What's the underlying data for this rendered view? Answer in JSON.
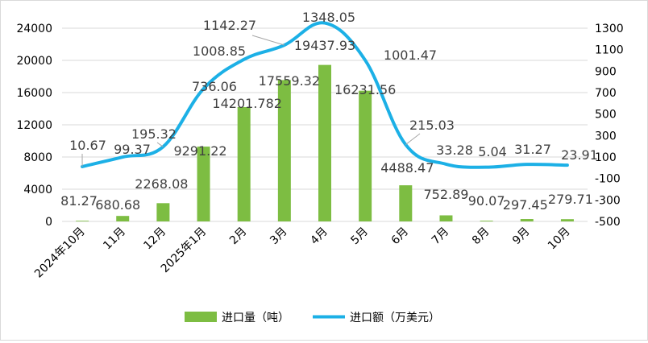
{
  "chart_data": {
    "type": "bar+line",
    "categories": [
      "2024年10月",
      "11月",
      "12月",
      "2025年1月",
      "2月",
      "3月",
      "4月",
      "5月",
      "6月",
      "7月",
      "8月",
      "9月",
      "10月"
    ],
    "series": [
      {
        "name": "进口量（吨）",
        "type": "bar",
        "axis": "left",
        "color": "#7dbd42",
        "values": [
          81.27,
          680.68,
          2268.08,
          9291.22,
          14201.782,
          17559.32,
          19437.93,
          16231.56,
          4488.47,
          752.89,
          90.07,
          297.45,
          279.71
        ],
        "labels": [
          "81.27",
          "680.68",
          "2268.08",
          "9291.22",
          "14201.782",
          "17559.32",
          "19437.93",
          "16231.56",
          "4488.47",
          "752.89",
          "90.07",
          "297.45",
          "279.71"
        ]
      },
      {
        "name": "进口额（万美元）",
        "type": "line",
        "axis": "right",
        "color": "#1cb0e6",
        "values": [
          10.67,
          99.37,
          195.32,
          736.06,
          1008.85,
          1142.27,
          1348.05,
          1001.47,
          215.03,
          33.28,
          5.04,
          31.27,
          23.91
        ],
        "labels": [
          "10.67",
          "99.37",
          "195.32",
          "736.06",
          "1008.85",
          "1142.27",
          "1348.05",
          "1001.47",
          "215.03",
          "33.28",
          "5.04",
          "31.27",
          "23.91"
        ]
      }
    ],
    "y_left": {
      "lim": [
        0,
        24000
      ],
      "ticks": [
        0,
        4000,
        8000,
        12000,
        16000,
        20000,
        24000
      ],
      "tick_labels": [
        "0",
        "4000",
        "8000",
        "12000",
        "16000",
        "20000",
        "24000"
      ]
    },
    "y_right": {
      "lim": [
        -500,
        1300
      ],
      "ticks": [
        -500,
        -300,
        -100,
        100,
        300,
        500,
        700,
        900,
        1100,
        1300
      ],
      "tick_labels": [
        "-500",
        "-300",
        "-100",
        "100",
        "300",
        "500",
        "700",
        "900",
        "1100",
        "1300"
      ]
    },
    "grid": true,
    "legend_position": "bottom"
  }
}
